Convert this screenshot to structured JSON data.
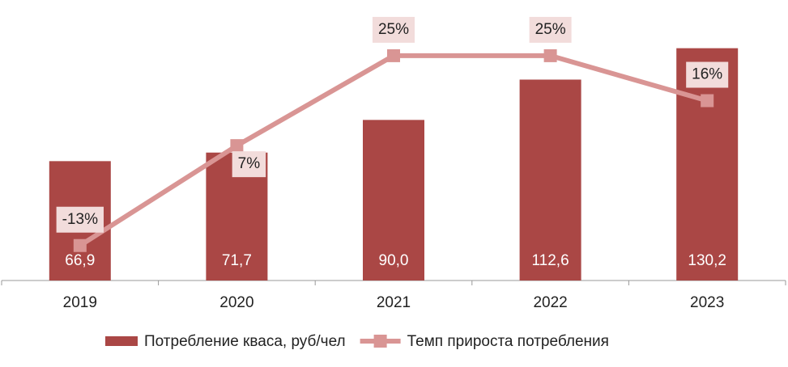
{
  "chart_data": {
    "type": "bar_line",
    "categories": [
      "2019",
      "2020",
      "2021",
      "2022",
      "2023"
    ],
    "series": [
      {
        "name": "Потребление кваса, руб/чел",
        "type": "bar",
        "color": "#aa4745",
        "values": [
          66.9,
          71.7,
          90.0,
          112.6,
          130.2
        ],
        "value_labels": [
          "66,9",
          "71,7",
          "90,0",
          "112,6",
          "130,2"
        ]
      },
      {
        "name": "Темп прироста потребления",
        "type": "line",
        "axis": "y2",
        "color": "#d99594",
        "values": [
          -13,
          7,
          25,
          25,
          16
        ],
        "value_labels": [
          "-13%",
          "7%",
          "25%",
          "25%",
          "16%"
        ]
      }
    ],
    "ylim": [
      0,
      140
    ],
    "y2lim": [
      -20,
      30
    ],
    "legend": "bottom"
  }
}
